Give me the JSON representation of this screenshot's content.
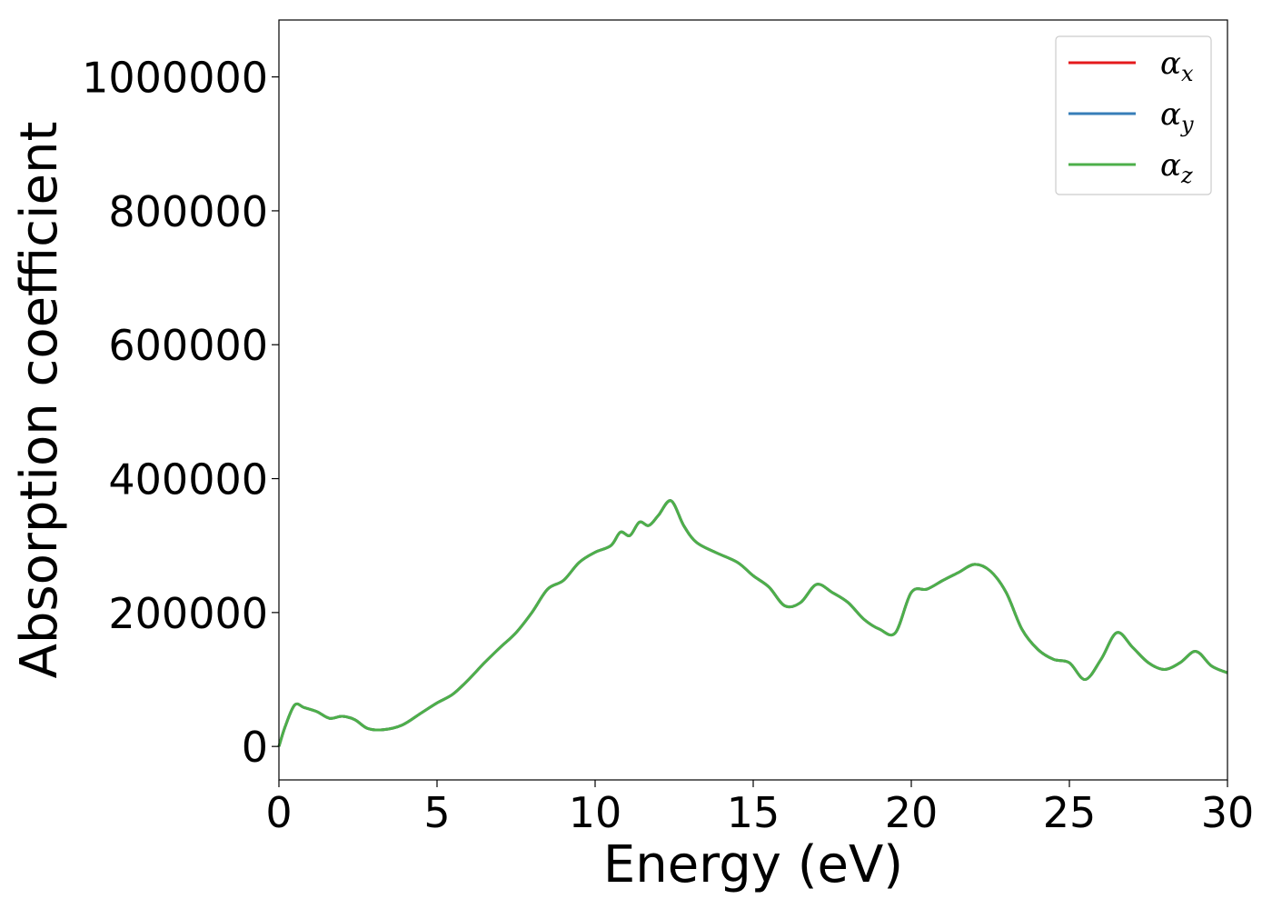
{
  "chart_data": {
    "type": "line",
    "xlabel": "Energy (eV)",
    "ylabel": "Absorption coefficient",
    "xlim": [
      0,
      30
    ],
    "ylim": [
      -50000,
      1085000
    ],
    "xticks": [
      0,
      5,
      10,
      15,
      20,
      25,
      30
    ],
    "xtick_labels": [
      "0",
      "5",
      "10",
      "15",
      "20",
      "25",
      "30"
    ],
    "yticks": [
      0,
      200000,
      400000,
      600000,
      800000,
      1000000
    ],
    "ytick_labels": [
      "0",
      "200000",
      "400000",
      "600000",
      "800000",
      "1000000"
    ],
    "grid": false,
    "legend_position": "top-right",
    "x": [
      0,
      0.2,
      0.5,
      0.8,
      1.2,
      1.6,
      2.0,
      2.4,
      2.8,
      3.3,
      3.9,
      4.5,
      5.0,
      5.5,
      6.0,
      6.5,
      7.0,
      7.5,
      8.0,
      8.5,
      9.0,
      9.5,
      10.0,
      10.5,
      10.8,
      11.1,
      11.4,
      11.7,
      12.0,
      12.4,
      12.8,
      13.2,
      13.8,
      14.5,
      15.0,
      15.5,
      16.0,
      16.5,
      17.0,
      17.5,
      18.0,
      18.5,
      19.0,
      19.5,
      20.0,
      20.5,
      21.0,
      21.5,
      22.0,
      22.5,
      23.0,
      23.5,
      24.0,
      24.5,
      25.0,
      25.5,
      26.0,
      26.5,
      27.0,
      27.5,
      28.0,
      28.5,
      29.0,
      29.5,
      30.0
    ],
    "series": [
      {
        "name": "α_x",
        "color": "#e41a1c",
        "values": [
          0,
          30000,
          62000,
          58000,
          52000,
          42000,
          45000,
          40000,
          27000,
          25000,
          32000,
          50000,
          65000,
          78000,
          100000,
          125000,
          148000,
          170000,
          200000,
          235000,
          248000,
          275000,
          290000,
          300000,
          320000,
          315000,
          335000,
          330000,
          345000,
          367000,
          330000,
          305000,
          290000,
          275000,
          255000,
          238000,
          210000,
          215000,
          242000,
          230000,
          215000,
          190000,
          175000,
          170000,
          230000,
          235000,
          248000,
          260000,
          272000,
          262000,
          230000,
          175000,
          145000,
          130000,
          125000,
          100000,
          130000,
          170000,
          148000,
          125000,
          115000,
          125000,
          142000,
          120000,
          110000
        ]
      },
      {
        "name": "α_y",
        "color": "#377eb8",
        "values": [
          0,
          30000,
          62000,
          58000,
          52000,
          42000,
          45000,
          40000,
          27000,
          25000,
          32000,
          50000,
          65000,
          78000,
          100000,
          125000,
          148000,
          170000,
          200000,
          235000,
          248000,
          275000,
          290000,
          300000,
          320000,
          315000,
          335000,
          330000,
          345000,
          367000,
          330000,
          305000,
          290000,
          275000,
          255000,
          238000,
          210000,
          215000,
          242000,
          230000,
          215000,
          190000,
          175000,
          170000,
          230000,
          235000,
          248000,
          260000,
          272000,
          262000,
          230000,
          175000,
          145000,
          130000,
          125000,
          100000,
          130000,
          170000,
          148000,
          125000,
          115000,
          125000,
          142000,
          120000,
          110000
        ]
      },
      {
        "name": "α_z",
        "color": "#4daf4a",
        "values": [
          0,
          30000,
          62000,
          58000,
          52000,
          42000,
          45000,
          40000,
          27000,
          25000,
          32000,
          50000,
          65000,
          78000,
          100000,
          125000,
          148000,
          170000,
          200000,
          235000,
          248000,
          275000,
          290000,
          300000,
          320000,
          315000,
          335000,
          330000,
          345000,
          367000,
          330000,
          305000,
          290000,
          275000,
          255000,
          238000,
          210000,
          215000,
          242000,
          230000,
          215000,
          190000,
          175000,
          170000,
          230000,
          235000,
          248000,
          260000,
          272000,
          262000,
          230000,
          175000,
          145000,
          130000,
          125000,
          100000,
          130000,
          170000,
          148000,
          125000,
          115000,
          125000,
          142000,
          120000,
          110000
        ]
      }
    ],
    "legend": [
      {
        "symbol": "α",
        "sub": "x"
      },
      {
        "symbol": "α",
        "sub": "y"
      },
      {
        "symbol": "α",
        "sub": "z"
      }
    ]
  }
}
